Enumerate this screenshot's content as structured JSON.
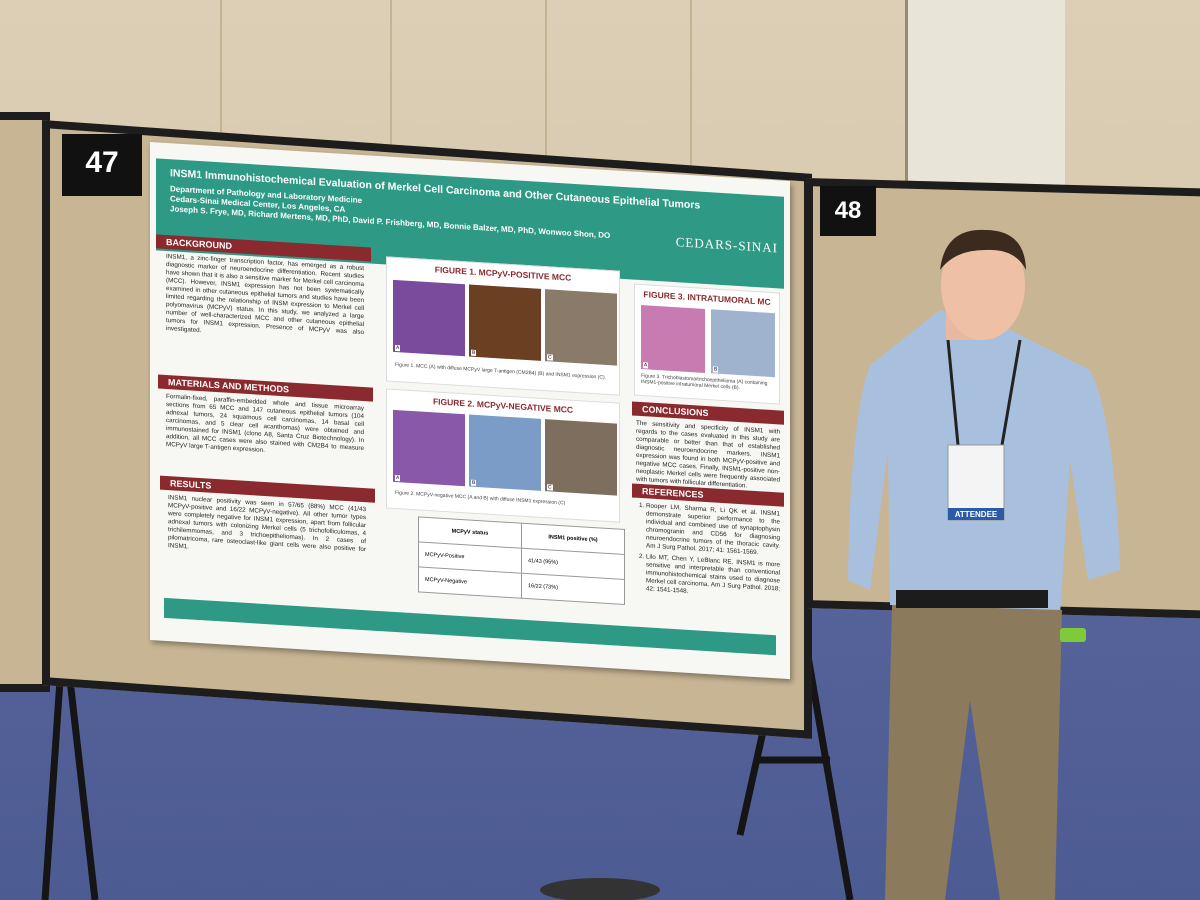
{
  "board_numbers": [
    "47",
    "48"
  ],
  "poster": {
    "title": "INSM1 Immunohistochemical Evaluation of Merkel Cell Carcinoma and Other Cutaneous Epithelial Tumors",
    "affiliation": [
      "Department of Pathology and Laboratory Medicine",
      "Cedars-Sinai Medical Center, Los Angeles, CA"
    ],
    "authors": "Joseph S. Frye, MD, Richard Mertens, MD, PhD, David P. Frishberg, MD, Bonnie Balzer, MD, PhD, Wonwoo Shon, DO",
    "logo": "CEDARS-SINAI",
    "sections": [
      {
        "heading": "BACKGROUND",
        "text": "INSM1, a zinc-finger transcription factor, has emerged as a robust diagnostic marker of neuroendocrine differentiation. Recent studies have shown that it is also a sensitive marker for Merkel cell carcinoma (MCC). However, INSM1 expression has not been systematically examined in other cutaneous epithelial tumors and studies have been limited regarding the relationship of INSM expression to Merkel cell polyomavirus (MCPyV) status. In this study, we analyzed a large number of well-characterized MCC and other cutaneous epithelial tumors for INSM1 expression. Presence of MCPyV was also investigated."
      },
      {
        "heading": "MATERIALS AND METHODS",
        "text": "Formalin-fixed, paraffin-embedded whole and tissue microarray sections from 65 MCC and 147 cutaneous epithelial tumors (104 adnexal tumors, 24 squamous cell carcinomas, 14 basal cell carcinomas, and 5 clear cell acanthomas) were obtained and immunostained for INSM1 (clone A8, Santa Cruz Biotechnology). In addition, all MCC cases were also stained with CM2B4 to measure MCPyV large T-antigen expression."
      },
      {
        "heading": "RESULTS",
        "text": "INSM1 nuclear positivity was seen in 57/65 (88%) MCC (41/43 MCPyV-positive and 16/22 MCPyV-negative). All other tumor types were completely negative for INSM1 expression, apart from follicular adnexal tumors with colonizing Merkel cells (5 trichofolliculomas, 4 trichilemmomas, and 3 trichoepitheliomas). In 2 cases of pilomatricoma, rare osteoclast-like giant cells were also positive for INSM1."
      },
      {
        "heading": "CONCLUSIONS",
        "text": "The sensitivity and specificity of INSM1 with regards to the cases evaluated in this study are comparable or better than that of established diagnostic neuroendocrine markers. INSM1 expression was found in both MCPyV-positive and negative MCC cases. Finally, INSM1-positive non-neoplastic Merkel cells were frequently associated with tumors with follicular differentiation."
      }
    ],
    "figures": [
      {
        "title": "FIGURE 1. MCPyV-POSITIVE MCC",
        "caption": "Figure 1. MCC (A) with diffuse MCPyV large T-antigen (CM2B4) (B) and INSM1 expression (C).",
        "panels": [
          "A",
          "B",
          "C"
        ]
      },
      {
        "title": "FIGURE 2. MCPyV-NEGATIVE MCC",
        "caption": "Figure 2. MCPyV-negative MCC (A and B) with diffuse INSM1 expression (C)",
        "panels": [
          "A",
          "B",
          "C"
        ]
      },
      {
        "title": "FIGURE 3. INTRATUMORAL MC",
        "caption": "Figure 3. Trichoblastoma/trichoepithelioma (A) containing INSM1-positive intratumoral Merkel cells (B).",
        "panels": [
          "A",
          "B"
        ]
      }
    ],
    "table": {
      "header": [
        "MCPyV status",
        "INSM1 positive (%)"
      ],
      "rows": [
        [
          "MCPyV-Positive",
          "41/43 (95%)"
        ],
        [
          "MCPyV-Negative",
          "16/22 (73%)"
        ]
      ]
    },
    "references": {
      "heading": "REFERENCES",
      "items": [
        "Rooper LM, Sharma R, Li QK et al. INSM1 demonstrate superior performance to the individual and combined use of synaptophysin chromogranin and CD56 for diagnosing neuroendocrine tumors of the thoracic cavity. Am J Surg Pathol. 2017; 41: 1561-1569.",
        "Lilo MT, Chen Y, LeBlanc RE. INSM1 is more sensitive and interpretable than conventional immunohistochemical stains used to diagnose Merkel cell carcinoma. Am J Surg Pathol. 2018; 42: 1541-1548."
      ]
    }
  },
  "badge": "ATTENDEE"
}
